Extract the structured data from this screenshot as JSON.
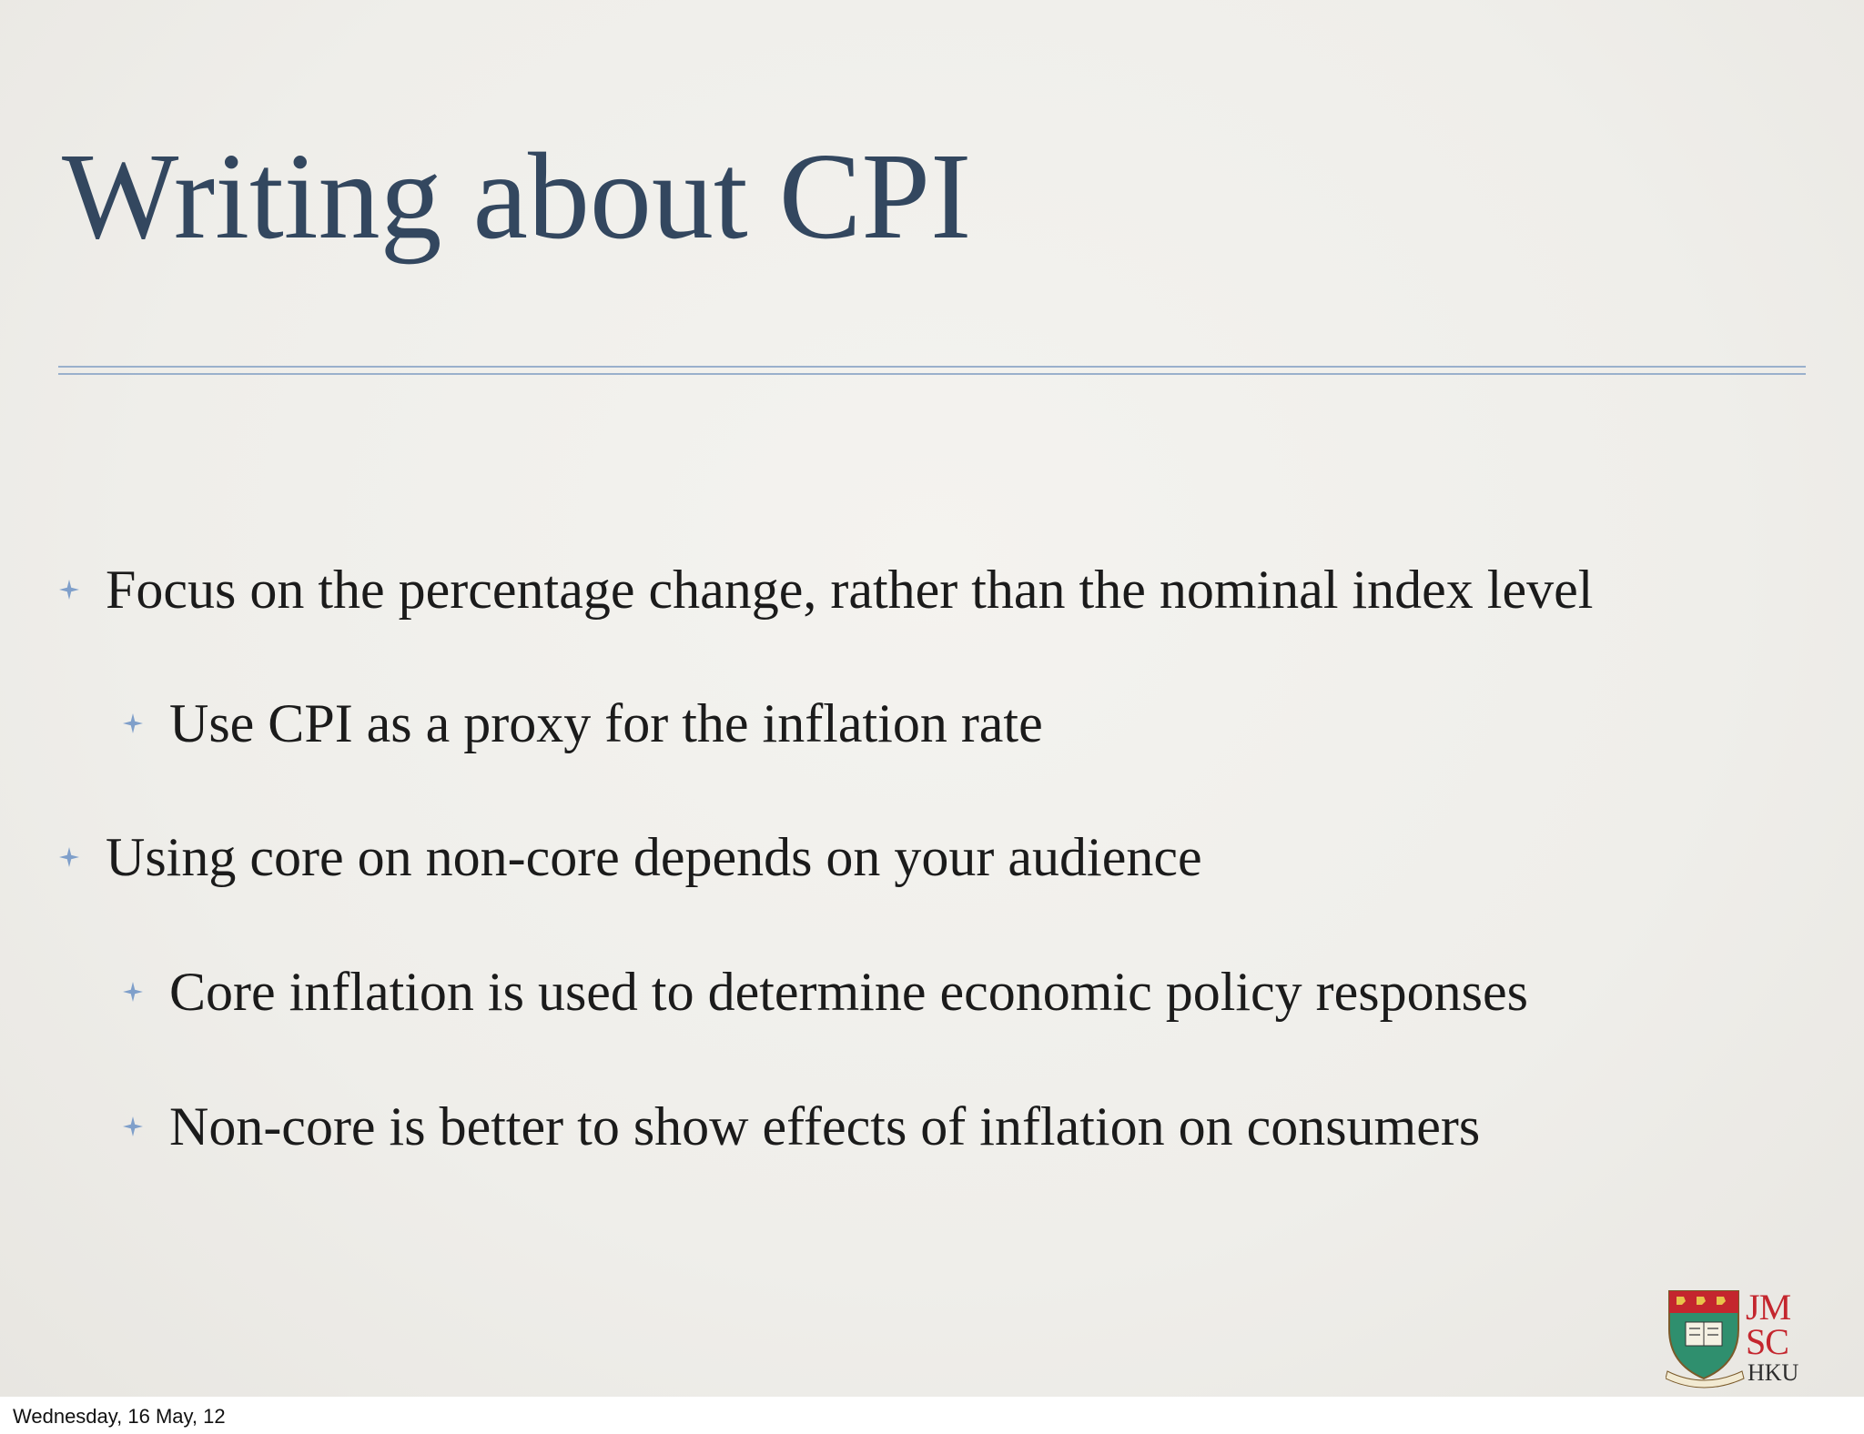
{
  "slide": {
    "title": "Writing about CPI",
    "bullets": [
      {
        "level": 1,
        "text": "Focus on the percentage change, rather than the nominal index level"
      },
      {
        "level": 2,
        "text": "Use CPI as a proxy for the inflation rate"
      },
      {
        "level": 1,
        "text": "Using core on non-core depends on your audience"
      },
      {
        "level": 2,
        "text": "Core inflation is used to determine economic policy responses"
      },
      {
        "level": 2,
        "text": "Non-core is better to show effects of inflation on consumers"
      }
    ],
    "bullet_icon": "four-point-star-icon",
    "colors": {
      "title": "#33475f",
      "rule": "#9ab0cc",
      "bullet_mark": "#7f9fca",
      "body_text": "#1b1b1b",
      "logo_red": "#c4262e"
    }
  },
  "logo": {
    "icon": "hku-crest-icon",
    "line1": "JM",
    "line2": "SC",
    "line3": "HKU"
  },
  "footer": {
    "date": "Wednesday, 16 May, 12"
  }
}
